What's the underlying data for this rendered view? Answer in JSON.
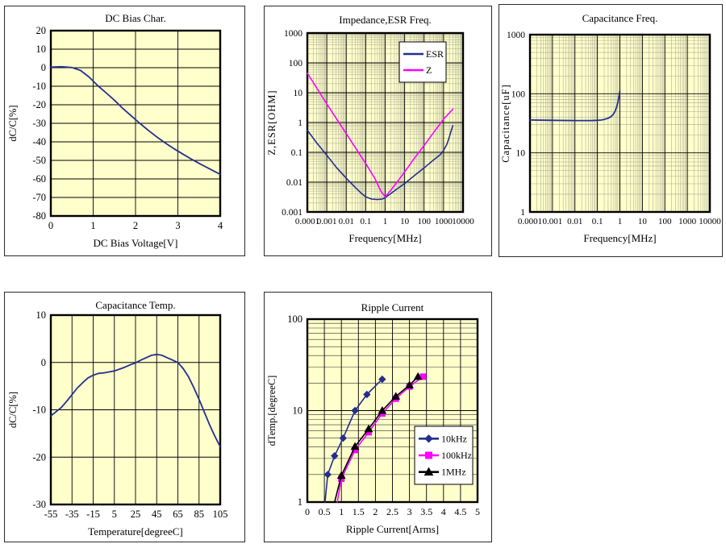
{
  "page": {
    "background": "#ffffff",
    "panel_background": "#ffffff",
    "panel_border": "#2a2a2a"
  },
  "colors": {
    "plot_bg": "#ffffcc",
    "grid_major": "#000000",
    "grid_minor_olive": "#a8a890",
    "grid_minor_dark": "#303030",
    "frame": "#000000",
    "navy": "#232e8f",
    "magenta": "#ff00ff",
    "black": "#000000"
  },
  "chart_data": [
    {
      "id": "dc-bias",
      "title": "DC Bias Char.",
      "type": "line",
      "xlabel": "DC Bias Voltage[V]",
      "ylabel": "dC/C[%]",
      "x_axis": {
        "scale": "linear",
        "min": 0,
        "max": 4,
        "ticks": [
          0,
          1,
          2,
          3,
          4
        ],
        "tick_labels": [
          "0",
          "1",
          "2",
          "3",
          "4"
        ]
      },
      "y_axis": {
        "scale": "linear",
        "min": -80,
        "max": 20,
        "ticks": [
          20,
          10,
          0,
          -10,
          -20,
          -30,
          -40,
          -50,
          -60,
          -70,
          -80
        ],
        "tick_labels": [
          "20",
          "10",
          "0",
          "-10",
          "-20",
          "-30",
          "-40",
          "-50",
          "-60",
          "-70",
          "-80"
        ]
      },
      "grid": {
        "minor": false,
        "minor_color": "#a8a890"
      },
      "legend": null,
      "series": [
        {
          "name": "dC/C",
          "color": "#232e8f",
          "marker": "none",
          "line_width": 1.8,
          "points": [
            [
              0,
              0.3
            ],
            [
              0.25,
              0.5
            ],
            [
              0.5,
              0.1
            ],
            [
              0.7,
              -1.5
            ],
            [
              0.9,
              -5
            ],
            [
              1.1,
              -9.5
            ],
            [
              1.3,
              -13.5
            ],
            [
              1.5,
              -17.5
            ],
            [
              1.7,
              -22
            ],
            [
              1.9,
              -26
            ],
            [
              2.1,
              -30
            ],
            [
              2.3,
              -33.8
            ],
            [
              2.5,
              -37.3
            ],
            [
              2.7,
              -40.6
            ],
            [
              2.9,
              -43.6
            ],
            [
              3.1,
              -46.4
            ],
            [
              3.3,
              -49.1
            ],
            [
              3.5,
              -51.6
            ],
            [
              3.7,
              -54
            ],
            [
              3.85,
              -55.8
            ],
            [
              4,
              -57.5
            ]
          ]
        }
      ]
    },
    {
      "id": "impedance-esr-freq",
      "title": "Impedance,ESR Freq.",
      "type": "line",
      "xlabel": "Frequency[MHz]",
      "ylabel": "Z,ESR[OHM]",
      "x_axis": {
        "scale": "log",
        "min": 0.0001,
        "max": 10000,
        "ticks": [
          0.0001,
          0.001,
          0.01,
          0.1,
          1,
          10,
          100,
          1000,
          10000
        ],
        "tick_labels": [
          "0.0001",
          "0.001",
          "0.01",
          "0.1",
          "1",
          "10",
          "100",
          "1000",
          "10000"
        ]
      },
      "y_axis": {
        "scale": "log",
        "min": 0.001,
        "max": 1000,
        "ticks": [
          1000,
          100,
          10,
          1,
          0.1,
          0.01,
          0.001
        ],
        "tick_labels": [
          "1000",
          "100",
          "10",
          "1",
          "0.1",
          "0.01",
          "0.001"
        ]
      },
      "grid": {
        "minor": true,
        "minor_color": "#a8a890"
      },
      "legend": {
        "position": "inside-top-right",
        "entries": [
          {
            "label": "ESR",
            "color": "#232e8f",
            "marker": "none"
          },
          {
            "label": "Z",
            "color": "#ff00ff",
            "marker": "none"
          }
        ]
      },
      "series": [
        {
          "name": "ESR",
          "color": "#232e8f",
          "marker": "none",
          "line_width": 1.6,
          "points": [
            [
              0.0001,
              0.55
            ],
            [
              0.0003,
              0.21
            ],
            [
              0.001,
              0.08
            ],
            [
              0.003,
              0.032
            ],
            [
              0.01,
              0.0135
            ],
            [
              0.03,
              0.0065
            ],
            [
              0.06,
              0.0042
            ],
            [
              0.1,
              0.0032
            ],
            [
              0.2,
              0.0027
            ],
            [
              0.4,
              0.0026
            ],
            [
              0.7,
              0.0027
            ],
            [
              1,
              0.003
            ],
            [
              2,
              0.0042
            ],
            [
              5,
              0.0065
            ],
            [
              10,
              0.009
            ],
            [
              30,
              0.016
            ],
            [
              100,
              0.03
            ],
            [
              300,
              0.055
            ],
            [
              700,
              0.085
            ],
            [
              1000,
              0.115
            ],
            [
              1500,
              0.19
            ],
            [
              2000,
              0.33
            ],
            [
              2500,
              0.55
            ],
            [
              3000,
              0.78
            ]
          ]
        },
        {
          "name": "Z",
          "color": "#ff00ff",
          "marker": "none",
          "line_width": 1.6,
          "points": [
            [
              0.0001,
              45
            ],
            [
              0.001,
              4.2
            ],
            [
              0.01,
              0.42
            ],
            [
              0.1,
              0.042
            ],
            [
              0.3,
              0.013
            ],
            [
              0.6,
              0.005
            ],
            [
              1,
              0.0032
            ],
            [
              2,
              0.0055
            ],
            [
              5,
              0.012
            ],
            [
              10,
              0.022
            ],
            [
              30,
              0.06
            ],
            [
              100,
              0.17
            ],
            [
              300,
              0.45
            ],
            [
              1000,
              1.3
            ],
            [
              3000,
              2.8
            ]
          ]
        }
      ]
    },
    {
      "id": "capacitance-freq",
      "title": "Capacitance Freq.",
      "type": "line",
      "xlabel": "Frequency[MHz]",
      "ylabel": "Capacitance[uF]",
      "x_axis": {
        "scale": "log",
        "min": 0.0001,
        "max": 10000,
        "ticks": [
          0.0001,
          0.001,
          0.01,
          0.1,
          1,
          10,
          100,
          1000,
          10000
        ],
        "tick_labels": [
          "0.0001",
          "0.001",
          "0.01",
          "0.1",
          "1",
          "10",
          "100",
          "1000",
          "10000"
        ]
      },
      "y_axis": {
        "scale": "log",
        "min": 1,
        "max": 1000,
        "ticks": [
          1000,
          100,
          10,
          1
        ],
        "tick_labels": [
          "1000",
          "100",
          "10",
          "1"
        ]
      },
      "grid": {
        "minor": true,
        "minor_color": "#a8a890"
      },
      "legend": null,
      "series": [
        {
          "name": "Capacitance",
          "color": "#232e8f",
          "marker": "none",
          "line_width": 1.8,
          "points": [
            [
              0.0001,
              36
            ],
            [
              0.001,
              35.5
            ],
            [
              0.01,
              35.2
            ],
            [
              0.05,
              35.2
            ],
            [
              0.1,
              35.5
            ],
            [
              0.15,
              36
            ],
            [
              0.2,
              36.8
            ],
            [
              0.3,
              38.5
            ],
            [
              0.4,
              41
            ],
            [
              0.5,
              44.5
            ],
            [
              0.6,
              50
            ],
            [
              0.7,
              58
            ],
            [
              0.8,
              70
            ],
            [
              0.9,
              88
            ],
            [
              1,
              110
            ]
          ]
        }
      ]
    },
    {
      "id": "capacitance-temp",
      "title": "Capacitance Temp.",
      "type": "line",
      "xlabel": "Temperature[degreeC]",
      "ylabel": "dC/C[%]",
      "x_axis": {
        "scale": "linear",
        "min": -55,
        "max": 105,
        "ticks": [
          -55,
          -35,
          -15,
          5,
          25,
          45,
          65,
          85,
          105
        ],
        "tick_labels": [
          "-55",
          "-35",
          "-15",
          "5",
          "25",
          "45",
          "65",
          "85",
          "105"
        ]
      },
      "y_axis": {
        "scale": "linear",
        "min": -30,
        "max": 10,
        "ticks": [
          10,
          0,
          -10,
          -20,
          -30
        ],
        "tick_labels": [
          "10",
          "0",
          "-10",
          "-20",
          "-30"
        ]
      },
      "grid": {
        "minor": false,
        "minor_color": "#a8a890"
      },
      "legend": null,
      "series": [
        {
          "name": "dC/C",
          "color": "#232e8f",
          "marker": "none",
          "line_width": 1.8,
          "points": [
            [
              -55,
              -11.3
            ],
            [
              -50,
              -10.4
            ],
            [
              -45,
              -9.5
            ],
            [
              -40,
              -8.2
            ],
            [
              -35,
              -6.8
            ],
            [
              -30,
              -5.4
            ],
            [
              -25,
              -4.3
            ],
            [
              -20,
              -3.3
            ],
            [
              -15,
              -2.7
            ],
            [
              -10,
              -2.3
            ],
            [
              -5,
              -2.2
            ],
            [
              0,
              -2
            ],
            [
              5,
              -1.8
            ],
            [
              10,
              -1.4
            ],
            [
              15,
              -1
            ],
            [
              20,
              -0.5
            ],
            [
              25,
              -0.1
            ],
            [
              30,
              0.5
            ],
            [
              35,
              1
            ],
            [
              40,
              1.5
            ],
            [
              45,
              1.7
            ],
            [
              50,
              1.5
            ],
            [
              55,
              1
            ],
            [
              60,
              0.5
            ],
            [
              65,
              0
            ],
            [
              70,
              -1.3
            ],
            [
              75,
              -3
            ],
            [
              80,
              -5.3
            ],
            [
              85,
              -7.8
            ],
            [
              90,
              -10.5
            ],
            [
              95,
              -13.2
            ],
            [
              100,
              -15.6
            ],
            [
              105,
              -17.8
            ]
          ]
        }
      ]
    },
    {
      "id": "ripple-current",
      "title": "Ripple Current",
      "type": "line",
      "xlabel": "Ripple Current[Arms]",
      "ylabel": "dTemp.[degreeC]",
      "x_axis": {
        "scale": "linear",
        "min": 0,
        "max": 5,
        "ticks": [
          0,
          0.5,
          1,
          1.5,
          2,
          2.5,
          3,
          3.5,
          4,
          4.5,
          5
        ],
        "tick_labels": [
          "0",
          "0.5",
          "1",
          "1.5",
          "2",
          "2.5",
          "3",
          "3.5",
          "4",
          "4.5",
          "5"
        ]
      },
      "y_axis": {
        "scale": "log",
        "min": 1,
        "max": 100,
        "ticks": [
          100,
          10,
          1
        ],
        "tick_labels": [
          "100",
          "10",
          "1"
        ]
      },
      "grid": {
        "minor": true,
        "minor_color": "#303030"
      },
      "legend": {
        "position": "inside-bottom-right",
        "entries": [
          {
            "label": "10kHz",
            "color": "#232e8f",
            "marker": "diamond"
          },
          {
            "label": "100kHz",
            "color": "#ff00ff",
            "marker": "square"
          },
          {
            "label": "1MHz",
            "color": "#000000",
            "marker": "triangle"
          }
        ]
      },
      "series": [
        {
          "name": "10kHz",
          "color": "#232e8f",
          "marker": "diamond",
          "line_width": 1.6,
          "points": [
            [
              0.52,
              1
            ],
            [
              0.6,
              2
            ],
            [
              0.8,
              3.2
            ],
            [
              1.05,
              5
            ],
            [
              1.4,
              10
            ],
            [
              1.75,
              15
            ],
            [
              2.2,
              22
            ]
          ],
          "markers": [
            [
              0.6,
              2
            ],
            [
              0.8,
              3.2
            ],
            [
              1.05,
              5
            ],
            [
              1.4,
              10
            ],
            [
              1.75,
              15
            ],
            [
              2.2,
              22
            ]
          ]
        },
        {
          "name": "100kHz",
          "color": "#ff00ff",
          "marker": "square",
          "line_width": 1.6,
          "points": [
            [
              0.88,
              1
            ],
            [
              1.0,
              1.8
            ],
            [
              1.4,
              3.7
            ],
            [
              1.8,
              5.8
            ],
            [
              2.2,
              9.3
            ],
            [
              2.6,
              13.5
            ],
            [
              3.0,
              18.3
            ],
            [
              3.4,
              23.5
            ]
          ],
          "markers": [
            [
              1.0,
              1.8
            ],
            [
              1.4,
              3.7
            ],
            [
              1.8,
              5.8
            ],
            [
              2.2,
              9.3
            ],
            [
              2.6,
              13.5
            ],
            [
              3.0,
              18.3
            ],
            [
              3.4,
              23.5
            ]
          ]
        },
        {
          "name": "1MHz",
          "color": "#000000",
          "marker": "triangle",
          "line_width": 1.6,
          "points": [
            [
              0.8,
              1
            ],
            [
              1.0,
              1.95
            ],
            [
              1.4,
              4.05
            ],
            [
              1.8,
              6.3
            ],
            [
              2.2,
              10
            ],
            [
              2.6,
              14.3
            ],
            [
              3.0,
              19
            ],
            [
              3.25,
              23.5
            ]
          ],
          "markers": [
            [
              1.0,
              1.95
            ],
            [
              1.4,
              4.05
            ],
            [
              1.8,
              6.3
            ],
            [
              2.2,
              10
            ],
            [
              2.6,
              14.3
            ],
            [
              3.0,
              19
            ],
            [
              3.25,
              23.5
            ]
          ]
        }
      ]
    }
  ]
}
